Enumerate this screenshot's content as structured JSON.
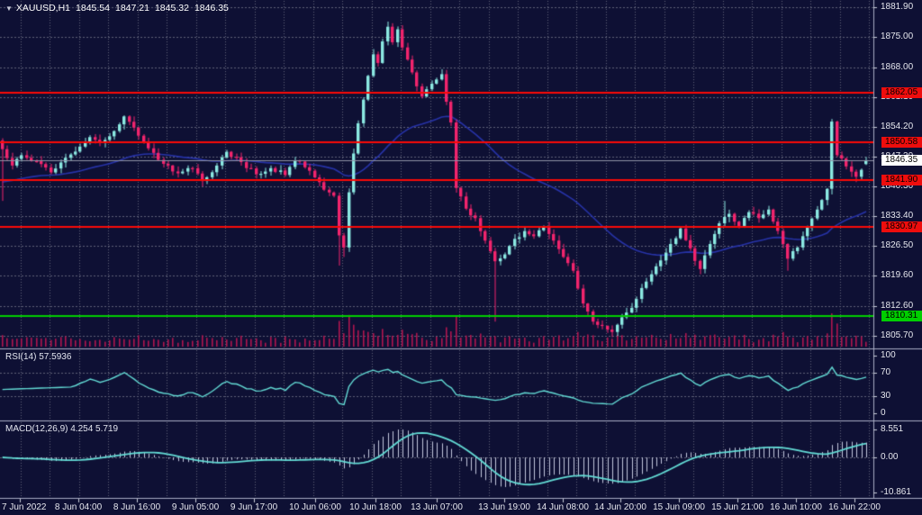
{
  "window": {
    "symbol_dropdown_icon": "▼",
    "symbol": "XAUUSD,H1",
    "ohlc": {
      "open": "1845.54",
      "high": "1847.21",
      "low": "1845.32",
      "close": "1846.35"
    }
  },
  "colors": {
    "background": "#0e1034",
    "grid": "#5f6178",
    "panel_border": "#a9adc4",
    "axis_text": "#e6e7ee",
    "candle_up": "#8be9e2",
    "candle_down": "#f2246d",
    "volume": "#b0164f",
    "moving_average": "#2733a8",
    "level_red": "#fb0a06",
    "level_green": "#00ce00",
    "current_price_line": "#8f93a6",
    "current_price_label_bg": "#ffffff",
    "indicator_line": "#63dbd5",
    "macd_histogram": "#c3c7dd"
  },
  "price_axis": {
    "ticks": [
      "1881.90",
      "1875.00",
      "1868.00",
      "1861.10",
      "1854.20",
      "1847.30",
      "1840.30",
      "1833.40",
      "1826.50",
      "1819.60",
      "1812.60",
      "1805.70"
    ],
    "tick_values": [
      1881.9,
      1875.0,
      1868.0,
      1861.1,
      1854.2,
      1847.3,
      1840.3,
      1833.4,
      1826.5,
      1819.6,
      1812.6,
      1805.7
    ]
  },
  "time_axis": {
    "labels": [
      "7 Jun 2022",
      "8 Jun 04:00",
      "8 Jun 16:00",
      "9 Jun 05:00",
      "9 Jun 17:00",
      "10 Jun 06:00",
      "10 Jun 18:00",
      "13 Jun 07:00",
      "13 Jun 19:00",
      "14 Jun 08:00",
      "14 Jun 20:00",
      "15 Jun 09:00",
      "15 Jun 21:00",
      "16 Jun 10:00",
      "16 Jun 22:00"
    ]
  },
  "levels": [
    {
      "label": "1862.05",
      "price": 1862.05,
      "color": "red"
    },
    {
      "label": "1850.58",
      "price": 1850.58,
      "color": "red"
    },
    {
      "label": "1841.90",
      "price": 1841.9,
      "color": "red"
    },
    {
      "label": "1830.97",
      "price": 1830.97,
      "color": "red"
    },
    {
      "label": "1810.31",
      "price": 1810.31,
      "color": "green"
    }
  ],
  "current_price": {
    "label": "1846.35",
    "value": 1846.35
  },
  "indicators": {
    "rsi": {
      "label": "RSI(14) 57.5936",
      "name": "RSI",
      "period": 14,
      "value": "57.5936",
      "axis": [
        "100",
        "70",
        "30",
        "0"
      ],
      "axis_values": [
        100,
        70,
        30,
        0
      ],
      "guide_levels": [
        70,
        30
      ]
    },
    "macd": {
      "label": "MACD(12,26,9) 4.254 5.719",
      "name": "MACD",
      "params": "12,26,9",
      "main_value": "4.254",
      "signal_value": "5.719",
      "axis": [
        "8.551",
        "0.00",
        "-10.861"
      ],
      "axis_values": [
        8.551,
        0,
        -10.861
      ]
    }
  },
  "chart_data": {
    "type": "candlestick",
    "symbol": "XAUUSD",
    "timeframe": "H1",
    "title": "XAUUSD,H1 1845.54 1847.21 1845.32 1846.35",
    "price_range_view": {
      "top": 1883.6,
      "bottom": 1803.2
    },
    "bars_visible": 178,
    "close_anchors": [
      [
        0,
        1849.0
      ],
      [
        2,
        1845.2
      ],
      [
        4,
        1847.6
      ],
      [
        7,
        1846.2
      ],
      [
        10,
        1843.6
      ],
      [
        13,
        1847.0
      ],
      [
        16,
        1849.6
      ],
      [
        18,
        1851.8
      ],
      [
        20,
        1850.4
      ],
      [
        23,
        1853.2
      ],
      [
        25,
        1856.6
      ],
      [
        27,
        1854.0
      ],
      [
        30,
        1849.2
      ],
      [
        33,
        1845.6
      ],
      [
        36,
        1843.4
      ],
      [
        39,
        1844.6
      ],
      [
        41,
        1841.6
      ],
      [
        44,
        1845.2
      ],
      [
        46,
        1848.4
      ],
      [
        49,
        1846.0
      ],
      [
        52,
        1843.2
      ],
      [
        55,
        1844.6
      ],
      [
        58,
        1843.0
      ],
      [
        60,
        1846.4
      ],
      [
        63,
        1844.0
      ],
      [
        66,
        1839.6
      ],
      [
        68,
        1838.2
      ],
      [
        69,
        1829.0
      ],
      [
        70,
        1826.2
      ],
      [
        71,
        1839.0
      ],
      [
        72,
        1848.0
      ],
      [
        73,
        1855.0
      ],
      [
        74,
        1860.5
      ],
      [
        75,
        1866.0
      ],
      [
        76,
        1871.0
      ],
      [
        77,
        1869.0
      ],
      [
        78,
        1874.0
      ],
      [
        79,
        1877.4
      ],
      [
        80,
        1873.8
      ],
      [
        81,
        1876.8
      ],
      [
        82,
        1872.6
      ],
      [
        84,
        1866.8
      ],
      [
        86,
        1861.2
      ],
      [
        88,
        1864.2
      ],
      [
        90,
        1866.4
      ],
      [
        91,
        1860.0
      ],
      [
        92,
        1855.2
      ],
      [
        93,
        1840.0
      ],
      [
        95,
        1835.2
      ],
      [
        97,
        1833.0
      ],
      [
        99,
        1827.8
      ],
      [
        101,
        1823.0
      ],
      [
        103,
        1824.6
      ],
      [
        105,
        1828.2
      ],
      [
        107,
        1830.0
      ],
      [
        109,
        1828.8
      ],
      [
        111,
        1831.0
      ],
      [
        113,
        1827.8
      ],
      [
        115,
        1824.0
      ],
      [
        117,
        1820.8
      ],
      [
        119,
        1813.2
      ],
      [
        121,
        1809.0
      ],
      [
        123,
        1808.0
      ],
      [
        125,
        1806.6
      ],
      [
        127,
        1810.0
      ],
      [
        129,
        1812.2
      ],
      [
        131,
        1816.8
      ],
      [
        133,
        1820.0
      ],
      [
        135,
        1823.2
      ],
      [
        137,
        1827.0
      ],
      [
        139,
        1830.6
      ],
      [
        141,
        1826.0
      ],
      [
        143,
        1821.2
      ],
      [
        145,
        1827.0
      ],
      [
        147,
        1831.8
      ],
      [
        149,
        1834.0
      ],
      [
        151,
        1831.2
      ],
      [
        153,
        1834.4
      ],
      [
        155,
        1833.0
      ],
      [
        157,
        1835.0
      ],
      [
        158,
        1832.2
      ],
      [
        160,
        1827.0
      ],
      [
        161,
        1823.6
      ],
      [
        163,
        1826.2
      ],
      [
        165,
        1831.0
      ],
      [
        167,
        1835.0
      ],
      [
        169,
        1839.8
      ],
      [
        170,
        1855.4
      ],
      [
        171,
        1847.6
      ],
      [
        173,
        1845.0
      ],
      [
        175,
        1842.6
      ],
      [
        177,
        1846.35
      ]
    ],
    "bar_overrides": [
      {
        "i": 0,
        "low": 1837.0
      },
      {
        "i": 69,
        "low": 1822.0
      },
      {
        "i": 70,
        "low": 1824.0
      },
      {
        "i": 79,
        "high": 1878.6
      },
      {
        "i": 101,
        "low": 1809.0
      },
      {
        "i": 125,
        "low": 1805.4
      },
      {
        "i": 148,
        "high": 1837.0
      },
      {
        "i": 161,
        "low": 1820.8
      },
      {
        "i": 170,
        "low": 1838.5
      },
      {
        "i": 177,
        "open": 1845.54,
        "high": 1847.21,
        "low": 1845.32,
        "close": 1846.35
      }
    ],
    "moving_average": {
      "type": "EMA-like",
      "period": 45
    },
    "volume": "histogram proportional to bar range, maroon, base of main panel",
    "sub_panels": [
      {
        "name": "RSI(14)",
        "last": 57.5936,
        "scale": [
          0,
          100
        ],
        "guides": [
          70,
          30
        ]
      },
      {
        "name": "MACD(12,26,9)",
        "main_last": 4.254,
        "signal_last": 5.719,
        "scale_max": 8.551,
        "scale_min": -10.861
      }
    ]
  }
}
